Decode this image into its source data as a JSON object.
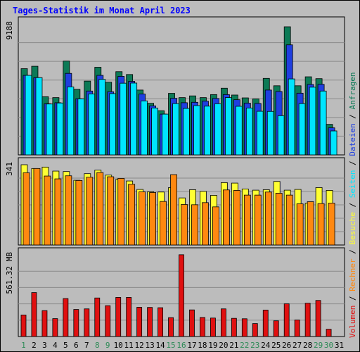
{
  "title": "Tages-Statistik im Monat April 2023",
  "colors": {
    "background": "#bcbcbc",
    "title": "#0000ff",
    "anfragen": "#0c7a56",
    "dateien": "#1f3fe0",
    "seiten": "#00e5ff",
    "besuche": "#ffff33",
    "rechner": "#ff8810",
    "volumen": "#e01010",
    "weekend_label": "#2e8b57",
    "weekday_label": "#000000"
  },
  "chart_data": [
    {
      "type": "bar",
      "title": "Tages-Statistik im Monat April 2023",
      "categories": [
        "1",
        "2",
        "3",
        "4",
        "5",
        "6",
        "7",
        "8",
        "9",
        "10",
        "11",
        "12",
        "13",
        "14",
        "15",
        "16",
        "17",
        "18",
        "19",
        "20",
        "21",
        "22",
        "23",
        "24",
        "25",
        "26",
        "27",
        "28",
        "29",
        "30",
        "31"
      ],
      "y_max_label": "9188",
      "ylim": [
        0,
        9188
      ],
      "series": [
        {
          "name": "Anfragen",
          "values": [
            6050,
            6220,
            4080,
            4020,
            6580,
            4600,
            5180,
            6150,
            5100,
            5840,
            5640,
            4550,
            3620,
            3100,
            4320,
            4020,
            4140,
            4020,
            4230,
            4680,
            4200,
            4000,
            3930,
            5370,
            4850,
            8990,
            4850,
            5480,
            5350,
            2140,
            0
          ]
        },
        {
          "name": "Dateien",
          "values": [
            5580,
            5420,
            3590,
            3660,
            5720,
            3940,
            4480,
            5580,
            4430,
            5510,
            5160,
            4270,
            3440,
            2860,
            3970,
            3660,
            3690,
            3770,
            3960,
            4230,
            3870,
            3630,
            3610,
            4550,
            4450,
            7720,
            4330,
            4940,
            4950,
            1900,
            0
          ]
        },
        {
          "name": "Seiten",
          "values": [
            5580,
            5420,
            3570,
            3640,
            4770,
            3930,
            4280,
            5300,
            4300,
            5030,
            5040,
            3790,
            3290,
            2860,
            3600,
            3260,
            3460,
            3420,
            3590,
            4020,
            3410,
            3290,
            3060,
            3050,
            2750,
            5330,
            3600,
            4750,
            4480,
            1680,
            0
          ]
        }
      ]
    },
    {
      "type": "bar",
      "categories": [
        "1",
        "2",
        "3",
        "4",
        "5",
        "6",
        "7",
        "8",
        "9",
        "10",
        "11",
        "12",
        "13",
        "14",
        "15",
        "16",
        "17",
        "18",
        "19",
        "20",
        "21",
        "22",
        "23",
        "24",
        "25",
        "26",
        "27",
        "28",
        "29",
        "30",
        "31"
      ],
      "y_max_label": "341",
      "ylim": [
        0,
        341
      ],
      "series": [
        {
          "name": "Besuche",
          "values": [
            341,
            325,
            331,
            314,
            312,
            275,
            303,
            318,
            297,
            279,
            272,
            236,
            226,
            225,
            244,
            200,
            235,
            228,
            211,
            265,
            263,
            238,
            233,
            235,
            270,
            233,
            236,
            178,
            244,
            232,
            0
          ]
        },
        {
          "name": "Rechner",
          "values": [
            307,
            325,
            293,
            281,
            294,
            274,
            288,
            308,
            290,
            283,
            258,
            226,
            223,
            185,
            299,
            172,
            171,
            180,
            162,
            234,
            232,
            212,
            212,
            225,
            220,
            212,
            175,
            184,
            176,
            178,
            0
          ]
        }
      ]
    },
    {
      "type": "bar",
      "categories": [
        "1",
        "2",
        "3",
        "4",
        "5",
        "6",
        "7",
        "8",
        "9",
        "10",
        "11",
        "12",
        "13",
        "14",
        "15",
        "16",
        "17",
        "18",
        "19",
        "20",
        "21",
        "22",
        "23",
        "24",
        "25",
        "26",
        "27",
        "28",
        "29",
        "30",
        "31"
      ],
      "y_max_label": "561.32 MB",
      "ylim": [
        0,
        561.32
      ],
      "series": [
        {
          "name": "Volumen",
          "values": [
            148,
            302,
            178,
            123,
            261,
            186,
            190,
            265,
            212,
            269,
            269,
            201,
            200,
            198,
            130,
            562,
            183,
            131,
            127,
            190,
            125,
            122,
            89,
            182,
            108,
            225,
            114,
            229,
            248,
            50,
            0
          ]
        }
      ]
    }
  ],
  "legend": [
    {
      "label": "Volumen",
      "color": "#e01010"
    },
    {
      "label": "/",
      "color": "#000000"
    },
    {
      "label": "Rechner",
      "color": "#ff8810"
    },
    {
      "label": "/",
      "color": "#000000"
    },
    {
      "label": "Besuche",
      "color": "#ffff33"
    },
    {
      "label": "/",
      "color": "#000000"
    },
    {
      "label": "Seiten",
      "color": "#00e5ff"
    },
    {
      "label": "/",
      "color": "#000000"
    },
    {
      "label": "Dateien",
      "color": "#1f3fe0"
    },
    {
      "label": "/",
      "color": "#000000"
    },
    {
      "label": "Anfragen",
      "color": "#0c7a56"
    }
  ],
  "weekend_days": [
    1,
    8,
    9,
    15,
    16,
    22,
    23,
    29,
    30
  ]
}
